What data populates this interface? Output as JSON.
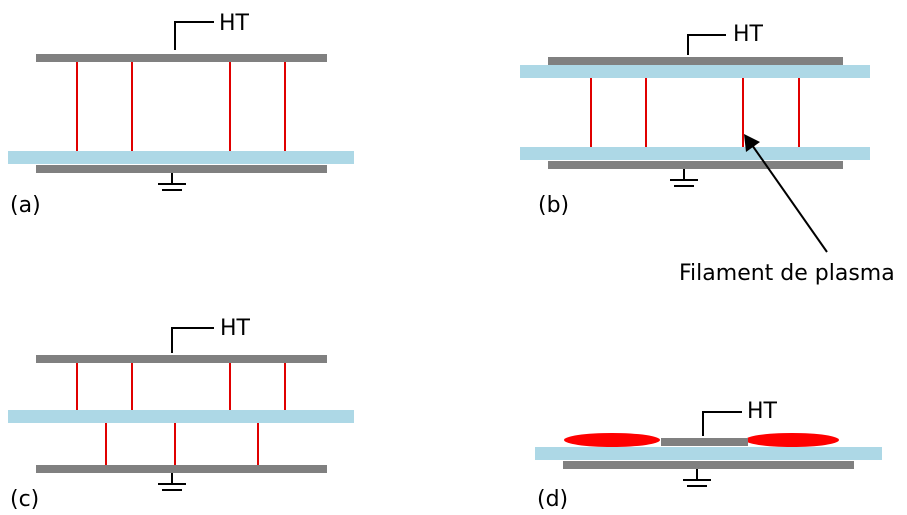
{
  "colors": {
    "electrode": "#808080",
    "dielectric": "#add8e6",
    "filament": "#e00000",
    "wire": "#000000"
  },
  "labels": {
    "high_voltage": "HT",
    "filament_callout": "Filament de plasma"
  },
  "panels": [
    {
      "id": "a",
      "label": "(a)"
    },
    {
      "id": "b",
      "label": "(b)"
    },
    {
      "id": "c",
      "label": "(c)"
    },
    {
      "id": "d",
      "label": "(d)"
    }
  ]
}
